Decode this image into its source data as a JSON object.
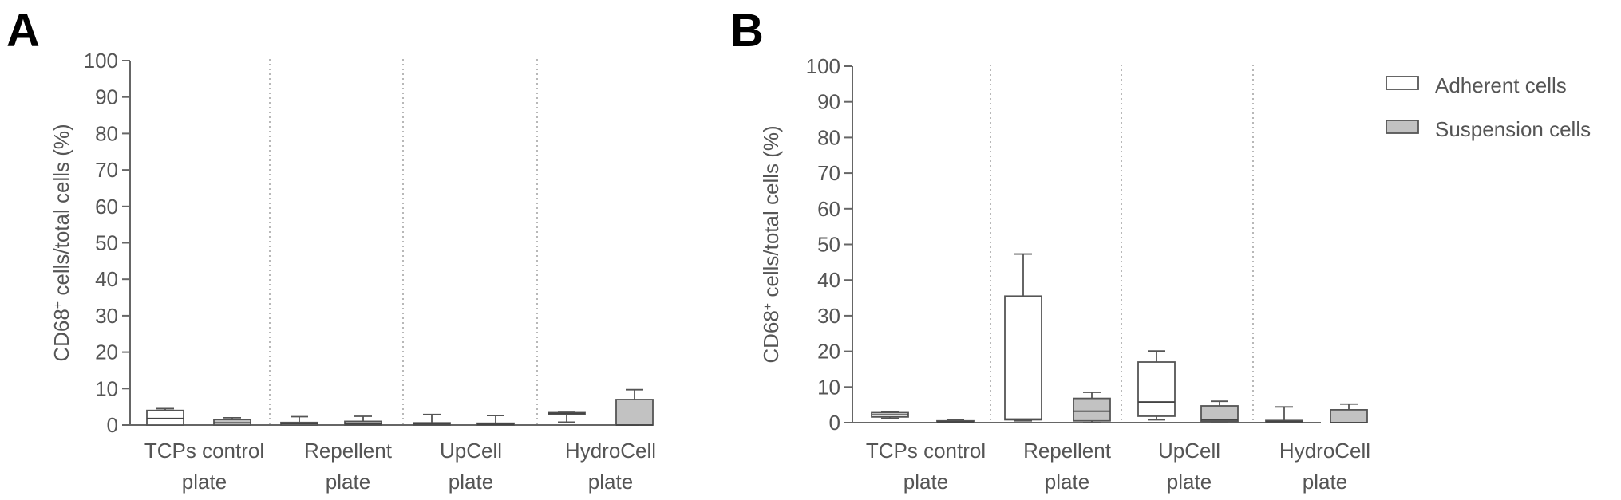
{
  "figure": {
    "panels": [
      "A",
      "B"
    ],
    "legend": {
      "placement": "top-right",
      "entries": [
        {
          "label": "Adherent cells",
          "color": "#ffffff"
        },
        {
          "label": "Suspension cells",
          "color": "#c2c2c2"
        }
      ]
    }
  },
  "chart_data": [
    {
      "panel": "A",
      "type": "box",
      "ylabel": "CD68⁺ cells/total cells (%)",
      "ylim": [
        0,
        100
      ],
      "yticks": [
        "0",
        "10",
        "20",
        "30",
        "40",
        "50",
        "60",
        "70",
        "80",
        "90",
        "100"
      ],
      "categories": [
        [
          "TCPs control",
          "plate"
        ],
        [
          "Repellent",
          "plate"
        ],
        [
          "UpCell",
          "plate"
        ],
        [
          "HydroCell",
          "plate"
        ]
      ],
      "series": [
        {
          "name": "Adherent cells",
          "color": "#ffffff",
          "values": [
            {
              "min": 0.0,
              "q1": 0.0,
              "median": 1.8,
              "q3": 4.0,
              "max": 4.5
            },
            {
              "min": 0.0,
              "q1": 0.0,
              "median": 0.4,
              "q3": 0.7,
              "max": 2.3
            },
            {
              "min": 0.0,
              "q1": 0.0,
              "median": 0.3,
              "q3": 0.6,
              "max": 2.9
            },
            {
              "min": 0.8,
              "q1": 3.0,
              "median": 3.2,
              "q3": 3.4,
              "max": 3.5
            }
          ]
        },
        {
          "name": "Suspension cells",
          "color": "#c2c2c2",
          "values": [
            {
              "min": 0.0,
              "q1": 0.0,
              "median": 0.6,
              "q3": 1.5,
              "max": 2.0
            },
            {
              "min": 0.0,
              "q1": 0.0,
              "median": 0.3,
              "q3": 1.0,
              "max": 2.4
            },
            {
              "min": 0.0,
              "q1": 0.0,
              "median": 0.2,
              "q3": 0.5,
              "max": 2.6
            },
            {
              "min": 0.0,
              "q1": 0.0,
              "median": 0.0,
              "q3": 7.0,
              "max": 9.7
            }
          ]
        }
      ]
    },
    {
      "panel": "B",
      "type": "box",
      "ylabel": "CD68⁺ cells/total cells (%)",
      "ylim": [
        0,
        100
      ],
      "yticks": [
        "0",
        "10",
        "20",
        "30",
        "40",
        "50",
        "60",
        "70",
        "80",
        "90",
        "100"
      ],
      "categories": [
        [
          "TCPs control",
          "plate"
        ],
        [
          "Repellent",
          "plate"
        ],
        [
          "UpCell",
          "plate"
        ],
        [
          "HydroCell",
          "plate"
        ]
      ],
      "series": [
        {
          "name": "Adherent cells",
          "color": "#ffffff",
          "values": [
            {
              "min": 1.2,
              "q1": 1.6,
              "median": 2.2,
              "q3": 2.8,
              "max": 3.0
            },
            {
              "min": 0.5,
              "q1": 0.8,
              "median": 1.0,
              "q3": 35.5,
              "max": 47.3
            },
            {
              "min": 0.8,
              "q1": 1.8,
              "median": 5.8,
              "q3": 17.0,
              "max": 20.1
            },
            {
              "min": 0.0,
              "q1": 0.0,
              "median": 0.3,
              "q3": 0.6,
              "max": 4.4
            }
          ]
        },
        {
          "name": "Suspension cells",
          "color": "#c2c2c2",
          "values": [
            {
              "min": 0.0,
              "q1": 0.0,
              "median": 0.2,
              "q3": 0.5,
              "max": 0.8
            },
            {
              "min": 0.0,
              "q1": 0.5,
              "median": 3.2,
              "q3": 6.8,
              "max": 8.5
            },
            {
              "min": 0.0,
              "q1": 0.3,
              "median": 0.7,
              "q3": 4.7,
              "max": 6.0
            },
            {
              "min": 0.0,
              "q1": 0.0,
              "median": 0.0,
              "q3": 3.6,
              "max": 5.2
            }
          ]
        }
      ]
    }
  ]
}
